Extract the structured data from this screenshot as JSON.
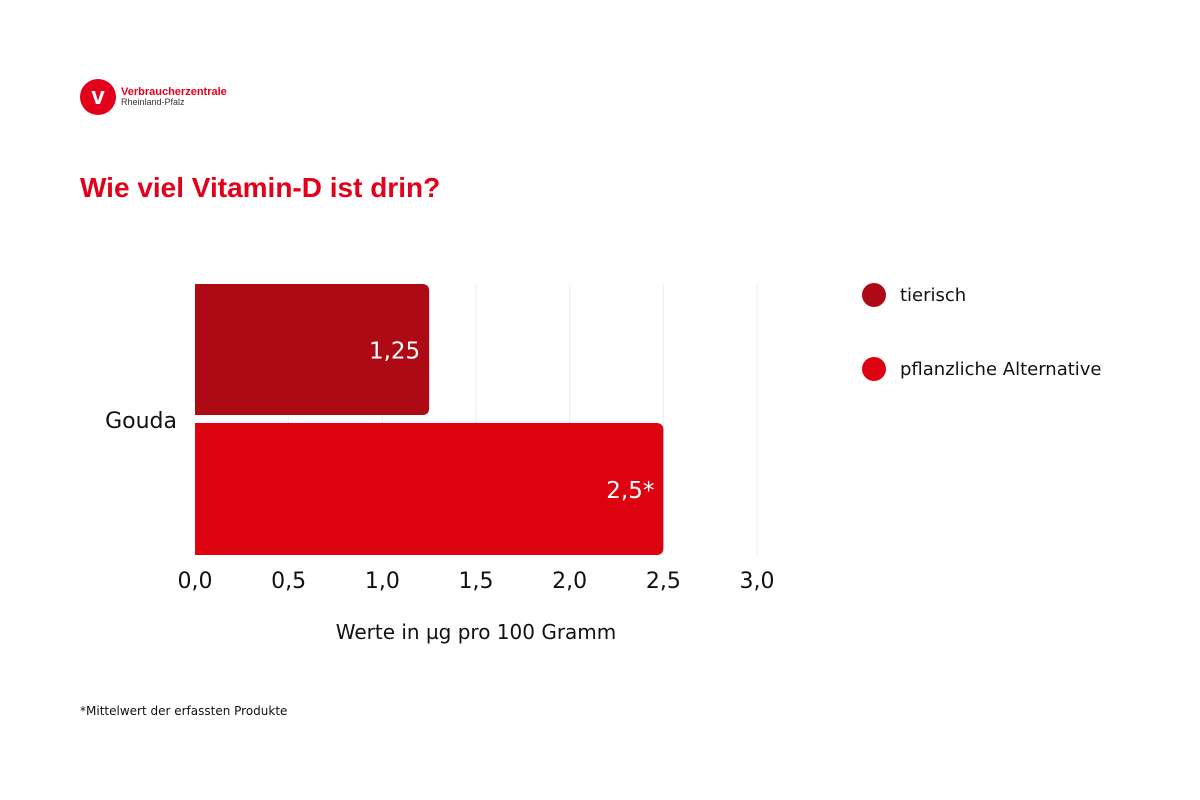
{
  "logo": {
    "name": "Verbraucherzentrale",
    "region": "Rheinland-Pfalz",
    "mark": "v"
  },
  "colors": {
    "brand": "#e2001a"
  },
  "chart_data": {
    "type": "bar",
    "orientation": "horizontal",
    "title": "Wie viel Vitamin-D ist drin?",
    "categories": [
      "Gouda"
    ],
    "series": [
      {
        "name": "tierisch",
        "values": [
          1.25
        ],
        "labels": [
          "1,25"
        ],
        "color": "#ad0a15"
      },
      {
        "name": "pflanzliche Alternative",
        "values": [
          2.5
        ],
        "labels": [
          "2,5*"
        ],
        "color": "#dd0210"
      }
    ],
    "xlabel": "Werte in µg pro 100 Gramm",
    "xlim": [
      0,
      3
    ],
    "xticks": [
      "0,0",
      "0,5",
      "1,0",
      "1,5",
      "2,0",
      "2,5",
      "3,0"
    ],
    "grid": true,
    "legend": "right"
  },
  "footnote": "*Mittelwert der erfassten Produkte"
}
